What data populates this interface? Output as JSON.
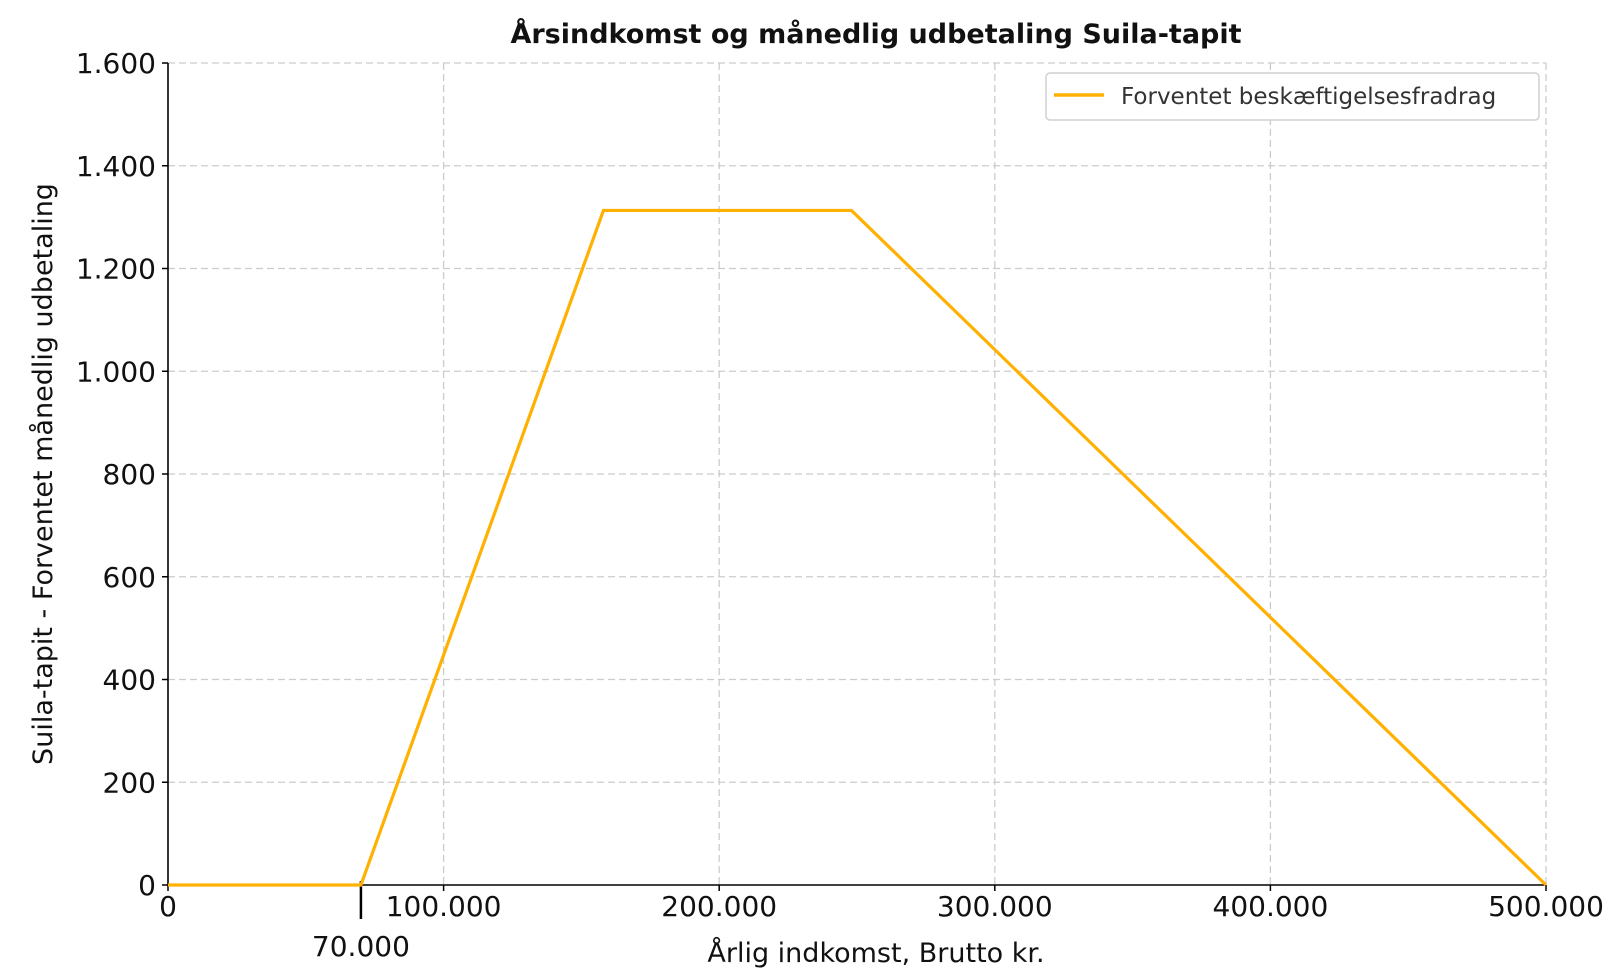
{
  "chart_data": {
    "type": "line",
    "title": "Årsindkomst og månedlig udbetaling Suila-tapit",
    "xlabel": "Årlig indkomst, Brutto kr.",
    "ylabel": "Suila-tapit - Forventet månedlig udbetaling",
    "xlim": [
      0,
      500000
    ],
    "ylim": [
      0,
      1600
    ],
    "x_ticks": [
      0,
      100000,
      200000,
      300000,
      400000,
      500000
    ],
    "x_tick_labels": [
      "0",
      "100.000",
      "200.000",
      "300.000",
      "400.000",
      "500.000"
    ],
    "y_ticks": [
      0,
      200,
      400,
      600,
      800,
      1000,
      1200,
      1400,
      1600
    ],
    "y_tick_labels": [
      "0",
      "200",
      "400",
      "600",
      "800",
      "1.000",
      "1.200",
      "1.400",
      "1.600"
    ],
    "grid": true,
    "legend_position": "top-right",
    "series": [
      {
        "name": "Forventet beskæftigelsesfradrag",
        "color": "#FFB000",
        "x": [
          0,
          70000,
          158000,
          248000,
          500000
        ],
        "values": [
          0,
          0,
          1313,
          1313,
          0
        ]
      }
    ],
    "annotations": [
      {
        "x": 70000,
        "label": "70.000",
        "marker": "tick"
      }
    ]
  }
}
